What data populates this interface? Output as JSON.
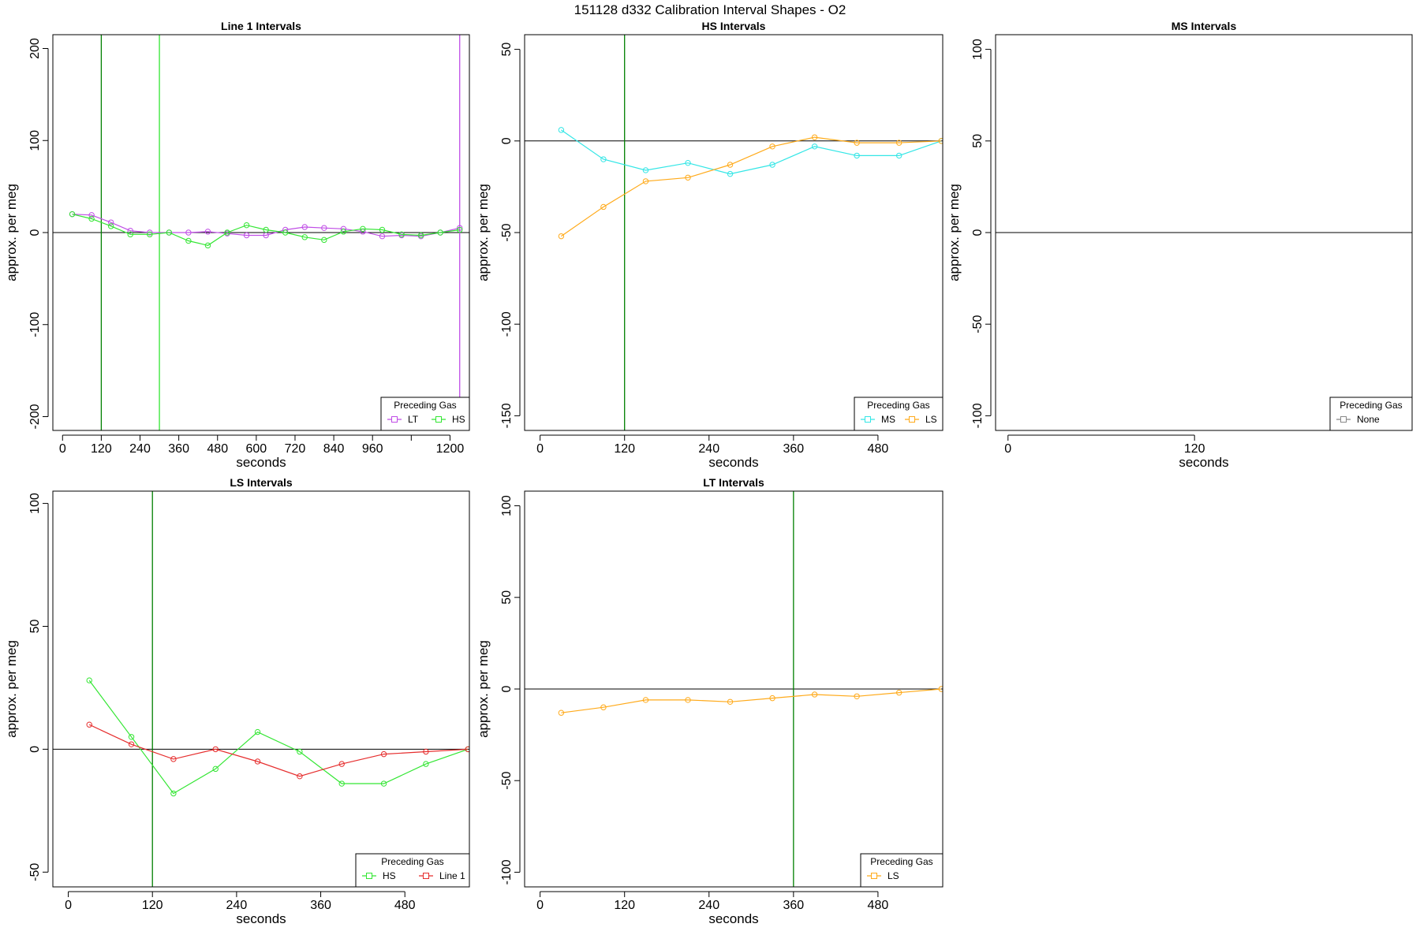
{
  "page": {
    "title": "151128   d332   Calibration Interval Shapes - O2"
  },
  "colors": {
    "axis": "#000000",
    "zero_line": "#000000",
    "marker_green": "#008000",
    "LT": "#c04de6",
    "HS": "#33e633",
    "MS": "#33e6e6",
    "LS": "#ffaa1a",
    "Line 1": "#e62e2e",
    "None": "#888888"
  },
  "chart_data": [
    {
      "id": "line1",
      "type": "line",
      "title": "Line 1 Intervals",
      "xlabel": "seconds",
      "ylabel": "approx. per meg",
      "xlim": [
        -30,
        1260
      ],
      "ylim": [
        -215,
        215
      ],
      "xticks": [
        0,
        120,
        240,
        360,
        480,
        600,
        720,
        840,
        960,
        1080,
        1200
      ],
      "xtick_labels": [
        "0",
        "120",
        "240",
        "360",
        "480",
        "600",
        "720",
        "840",
        "960",
        "",
        "1200"
      ],
      "yticks": [
        -200,
        -100,
        0,
        100,
        200
      ],
      "ytick_labels": [
        "-200",
        "-100",
        "0",
        "100",
        "200"
      ],
      "vlines": [
        {
          "x": 120,
          "color": "marker_green"
        },
        {
          "x": 300,
          "color": "HS"
        },
        {
          "x": 1230,
          "color": "LT"
        }
      ],
      "legend": {
        "title": "Preceding Gas",
        "position": "bottom-right",
        "entries": [
          "LT",
          "HS"
        ]
      },
      "series": [
        {
          "name": "LT",
          "x": [
            30,
            90,
            150,
            210,
            270,
            330,
            390,
            450,
            510,
            570,
            630,
            690,
            750,
            810,
            870,
            930,
            990,
            1050,
            1110,
            1170,
            1230
          ],
          "values": [
            20,
            19,
            11,
            2,
            0,
            0,
            0,
            1,
            -1,
            -3,
            -3,
            3,
            6,
            5,
            4,
            1,
            -4,
            -3,
            -4,
            0,
            5
          ]
        },
        {
          "name": "HS",
          "x": [
            30,
            90,
            150,
            210,
            270,
            330,
            390,
            450,
            510,
            570,
            630,
            690,
            750,
            810,
            870,
            930,
            990,
            1050,
            1110,
            1170,
            1230
          ],
          "values": [
            20,
            15,
            7,
            -2,
            -2,
            0,
            -9,
            -14,
            0,
            8,
            3,
            0,
            -5,
            -8,
            1,
            4,
            3,
            -2,
            -3,
            0,
            3
          ]
        }
      ]
    },
    {
      "id": "hs",
      "type": "line",
      "title": "HS Intervals",
      "xlabel": "seconds",
      "ylabel": "approx. per meg",
      "xlim": [
        -22,
        572
      ],
      "ylim": [
        -158,
        58
      ],
      "xticks": [
        0,
        120,
        240,
        360,
        480
      ],
      "xtick_labels": [
        "0",
        "120",
        "240",
        "360",
        "480"
      ],
      "yticks": [
        -150,
        -100,
        -50,
        0,
        50
      ],
      "ytick_labels": [
        "-150",
        "-100",
        "-50",
        "0",
        "50"
      ],
      "vlines": [
        {
          "x": 120,
          "color": "marker_green"
        }
      ],
      "legend": {
        "title": "Preceding Gas",
        "position": "bottom-right",
        "entries": [
          "MS",
          "LS"
        ]
      },
      "series": [
        {
          "name": "MS",
          "x": [
            30,
            90,
            150,
            210,
            270,
            330,
            390,
            450,
            510,
            570
          ],
          "values": [
            6,
            -10,
            -16,
            -12,
            -18,
            -13,
            -3,
            -8,
            -8,
            0
          ]
        },
        {
          "name": "LS",
          "x": [
            30,
            90,
            150,
            210,
            270,
            330,
            390,
            450,
            510,
            570
          ],
          "values": [
            -52,
            -36,
            -22,
            -20,
            -13,
            -3,
            2,
            -1,
            -1,
            0
          ]
        }
      ]
    },
    {
      "id": "ms",
      "type": "line",
      "title": "MS Intervals",
      "xlabel": "seconds",
      "ylabel": "approx. per meg",
      "xlim": [
        -8,
        260
      ],
      "ylim": [
        -108,
        108
      ],
      "xticks": [
        0,
        120
      ],
      "xtick_labels": [
        "0",
        "120"
      ],
      "yticks": [
        -100,
        -50,
        0,
        50,
        100
      ],
      "ytick_labels": [
        "-100",
        "-50",
        "0",
        "50",
        "100"
      ],
      "vlines": [],
      "legend": {
        "title": "Preceding Gas",
        "position": "bottom-right",
        "entries": [
          "None"
        ]
      },
      "series": []
    },
    {
      "id": "ls",
      "type": "line",
      "title": "LS Intervals",
      "xlabel": "seconds",
      "ylabel": "approx. per meg",
      "xlim": [
        -22,
        572
      ],
      "ylim": [
        -56,
        105
      ],
      "xticks": [
        0,
        120,
        240,
        360,
        480
      ],
      "xtick_labels": [
        "0",
        "120",
        "240",
        "360",
        "480"
      ],
      "yticks": [
        -50,
        0,
        50,
        100
      ],
      "ytick_labels": [
        "-50",
        "0",
        "50",
        "100"
      ],
      "vlines": [
        {
          "x": 120,
          "color": "marker_green"
        }
      ],
      "legend": {
        "title": "Preceding Gas",
        "position": "bottom-right",
        "entries": [
          "HS",
          "Line 1"
        ]
      },
      "series": [
        {
          "name": "HS",
          "x": [
            30,
            90,
            150,
            210,
            270,
            330,
            390,
            450,
            510,
            570
          ],
          "values": [
            28,
            5,
            -18,
            -8,
            7,
            -1,
            -14,
            -14,
            -6,
            0
          ]
        },
        {
          "name": "Line 1",
          "x": [
            30,
            90,
            150,
            210,
            270,
            330,
            390,
            450,
            510,
            570
          ],
          "values": [
            10,
            2,
            -4,
            0,
            -5,
            -11,
            -6,
            -2,
            -1,
            0
          ]
        }
      ]
    },
    {
      "id": "lt",
      "type": "line",
      "title": "LT Intervals",
      "xlabel": "seconds",
      "ylabel": "approx. per meg",
      "xlim": [
        -22,
        572
      ],
      "ylim": [
        -108,
        108
      ],
      "xticks": [
        0,
        120,
        240,
        360,
        480
      ],
      "xtick_labels": [
        "0",
        "120",
        "240",
        "360",
        "480"
      ],
      "yticks": [
        -100,
        -50,
        0,
        50,
        100
      ],
      "ytick_labels": [
        "-100",
        "-50",
        "0",
        "50",
        "100"
      ],
      "vlines": [
        {
          "x": 360,
          "color": "marker_green"
        }
      ],
      "legend": {
        "title": "Preceding Gas",
        "position": "bottom-right",
        "entries": [
          "LS"
        ]
      },
      "series": [
        {
          "name": "LS",
          "x": [
            30,
            90,
            150,
            210,
            270,
            330,
            390,
            450,
            510,
            570
          ],
          "values": [
            -13,
            -10,
            -6,
            -6,
            -7,
            -5,
            -3,
            -4,
            -2,
            0
          ]
        }
      ]
    }
  ]
}
